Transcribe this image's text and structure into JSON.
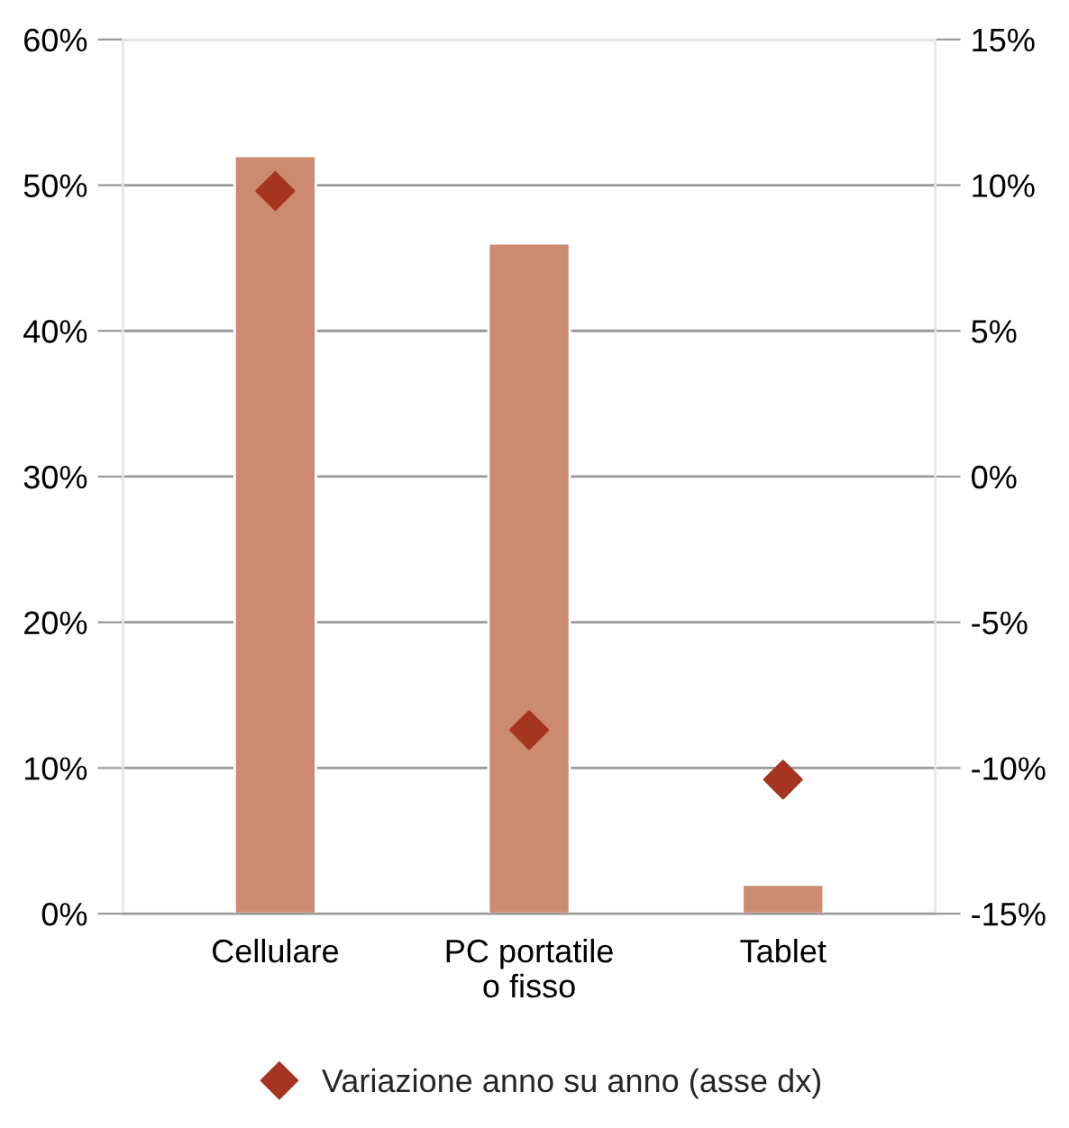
{
  "chart_data": {
    "type": "bar",
    "categories": [
      "Cellulare",
      "PC portatile\no fisso",
      "Tablet"
    ],
    "series": [
      {
        "color": "#cc8b6f",
        "values": [
          52,
          46,
          2
        ]
      },
      {
        "type": "scatter",
        "name": "Variazione anno su anno (asse dx)",
        "axis": "y2",
        "color": "#a53420",
        "values": [
          9.8,
          -8.7,
          -10.4
        ]
      }
    ],
    "ylim": [
      0,
      60
    ],
    "yticks": [
      {
        "value": 0,
        "label": "0%"
      },
      {
        "value": 10,
        "label": "10%"
      },
      {
        "value": 20,
        "label": "20%"
      },
      {
        "value": 30,
        "label": "30%"
      },
      {
        "value": 40,
        "label": "40%"
      },
      {
        "value": 50,
        "label": "50%"
      },
      {
        "value": 60,
        "label": "60%"
      }
    ],
    "y2lim": [
      -15,
      15
    ],
    "y2ticks": [
      {
        "value": -15,
        "label": "-15%"
      },
      {
        "value": -10,
        "label": "-10%"
      },
      {
        "value": -5,
        "label": "-5%"
      },
      {
        "value": 0,
        "label": "0%"
      },
      {
        "value": 5,
        "label": "5%"
      },
      {
        "value": 10,
        "label": "10%"
      },
      {
        "value": 15,
        "label": "15%"
      }
    ],
    "grid": "y",
    "legend": "bottom",
    "marker": "diamond"
  }
}
